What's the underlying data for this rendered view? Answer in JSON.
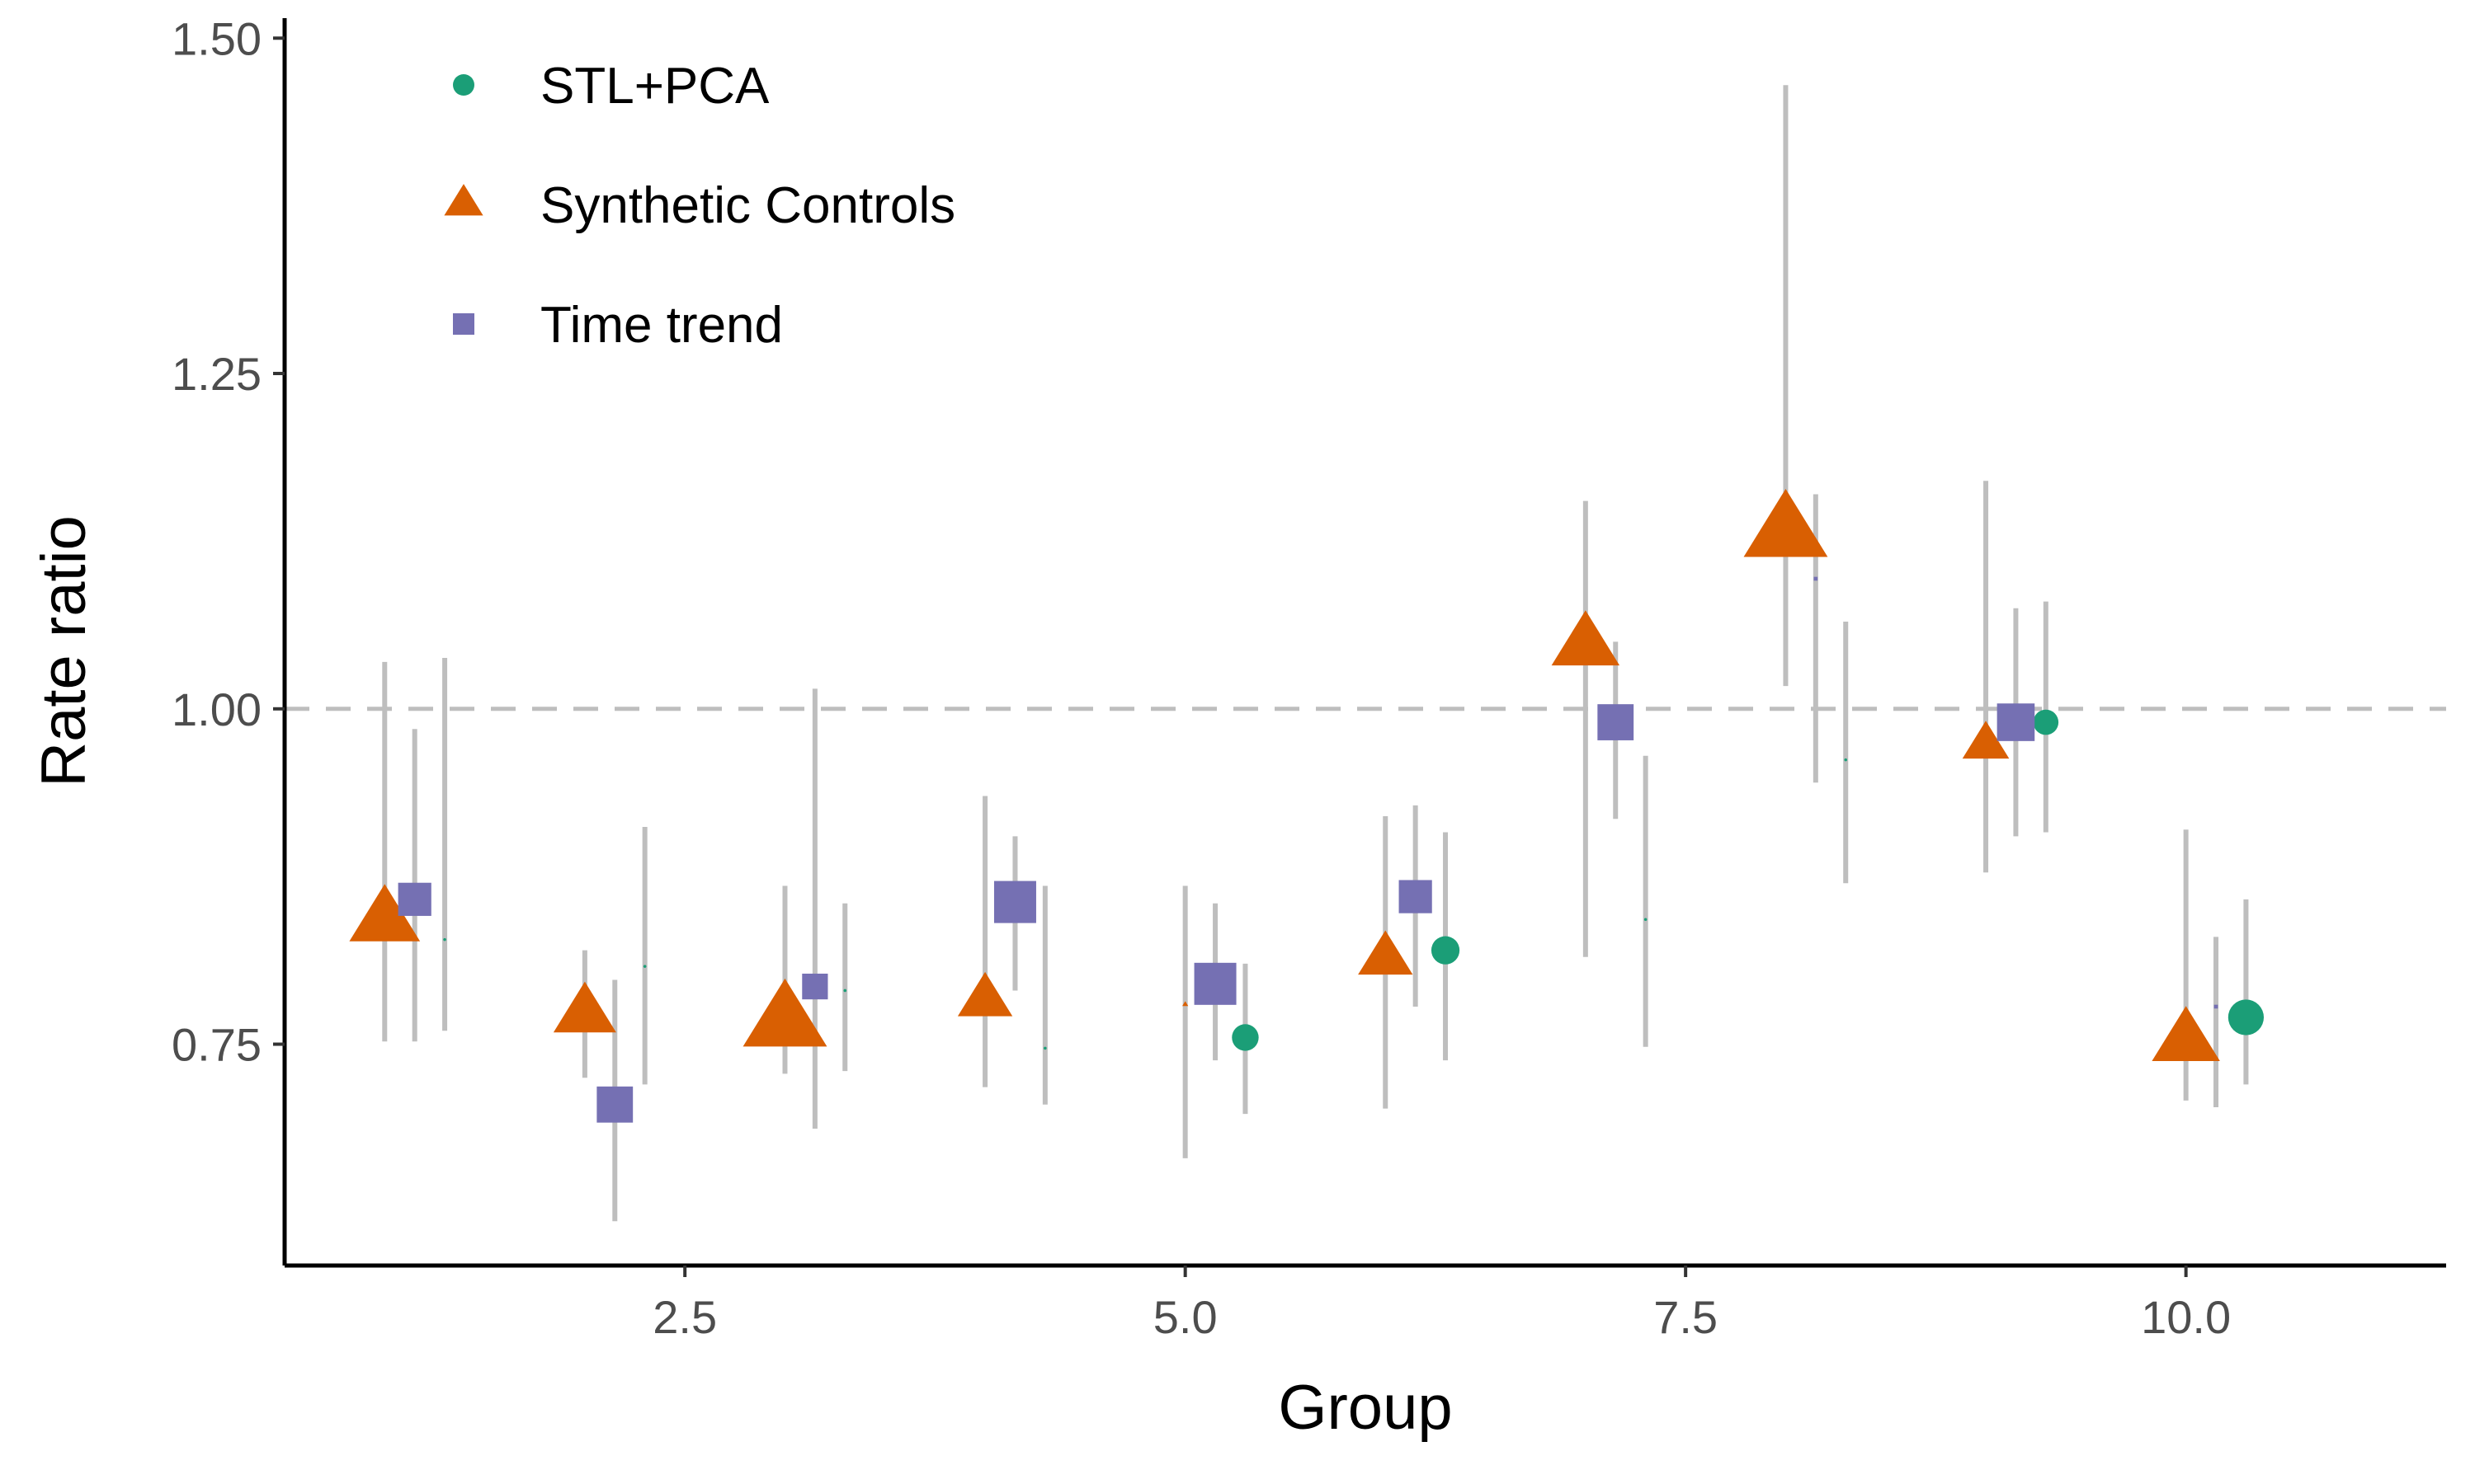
{
  "chart_data": {
    "type": "scatter",
    "xlabel": "Group",
    "ylabel": "Rate ratio",
    "xlim": [
      0.5,
      11.3
    ],
    "ylim": [
      0.585,
      1.51
    ],
    "x_ticks": [
      2.5,
      5.0,
      7.5,
      10.0
    ],
    "x_tick_labels": [
      "2.5",
      "5.0",
      "7.5",
      "10.0"
    ],
    "y_ticks": [
      0.75,
      1.0,
      1.25,
      1.5
    ],
    "y_tick_labels": [
      "0.75",
      "1.00",
      "1.25",
      "1.50"
    ],
    "reference_line": 1.0,
    "grid": false,
    "legend_position": "top-left",
    "series": [
      {
        "name": "STL+PCA",
        "shape": "circle",
        "color": "#1b9e77",
        "x": [
          1.3,
          2.3,
          3.3,
          4.3,
          5.3,
          6.3,
          7.3,
          8.3,
          9.3,
          10.3
        ],
        "y": [
          0.828,
          0.808,
          0.79,
          0.747,
          0.755,
          0.82,
          0.843,
          0.962,
          0.99,
          0.77
        ],
        "lower": [
          0.76,
          0.72,
          0.73,
          0.705,
          0.698,
          0.738,
          0.748,
          0.87,
          0.908,
          0.72
        ],
        "upper": [
          1.038,
          0.912,
          0.855,
          0.868,
          0.81,
          0.908,
          0.965,
          1.065,
          1.08,
          0.858
        ],
        "weight": [
          0.05,
          0.05,
          0.05,
          0.05,
          0.4,
          0.45,
          0.05,
          0.05,
          0.35,
          0.7
        ]
      },
      {
        "name": "Synthetic Controls",
        "shape": "triangle",
        "color": "#d95f02",
        "x": [
          1.0,
          2.0,
          3.0,
          4.0,
          5.0,
          6.0,
          7.0,
          8.0,
          9.0,
          10.0
        ],
        "y": [
          0.845,
          0.775,
          0.77,
          0.785,
          0.78,
          0.816,
          1.05,
          1.135,
          0.975,
          0.755
        ],
        "lower": [
          0.752,
          0.725,
          0.728,
          0.718,
          0.665,
          0.702,
          0.815,
          1.017,
          0.878,
          0.708
        ],
        "upper": [
          1.035,
          0.82,
          0.868,
          0.935,
          0.868,
          0.92,
          1.155,
          1.465,
          1.17,
          0.91
        ],
        "weight": [
          0.75,
          0.6,
          1.0,
          0.45,
          0.05,
          0.45,
          0.7,
          1.0,
          0.3,
          0.7
        ]
      },
      {
        "name": "Time trend",
        "shape": "square",
        "color": "#7570b3",
        "x": [
          1.15,
          2.15,
          3.15,
          4.15,
          5.15,
          6.15,
          7.15,
          8.15,
          9.15,
          10.15
        ],
        "y": [
          0.858,
          0.705,
          0.793,
          0.856,
          0.795,
          0.86,
          0.99,
          1.097,
          0.99,
          0.778
        ],
        "lower": [
          0.752,
          0.618,
          0.687,
          0.79,
          0.738,
          0.778,
          0.918,
          0.945,
          0.905,
          0.703
        ],
        "upper": [
          0.985,
          0.798,
          1.015,
          0.905,
          0.855,
          0.928,
          1.05,
          1.16,
          1.075,
          0.83
        ],
        "weight": [
          0.45,
          0.55,
          0.2,
          0.75,
          0.75,
          0.45,
          0.55,
          0.05,
          0.6,
          0.05
        ]
      }
    ]
  }
}
